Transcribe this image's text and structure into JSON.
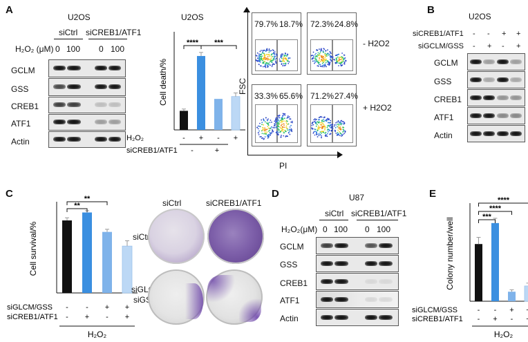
{
  "panels": {
    "A": "A",
    "B": "B",
    "C": "C",
    "D": "D",
    "E": "E"
  },
  "panelA": {
    "cell_line": "U2OS",
    "group_left": "siCtrl",
    "group_right": "siCREB1/ATF1",
    "treatment_label": "H₂O₂ (μM)",
    "doses": [
      "0",
      "100",
      "0",
      "100"
    ],
    "proteins": [
      "GCLM",
      "GSS",
      "CREB1",
      "ATF1",
      "Actin"
    ],
    "bar_title": "U2OS",
    "facs": {
      "y_label": "FSC",
      "x_label": "PI",
      "percent_labels": [
        "79.7%",
        "18.7%",
        "72.3%",
        "24.8%",
        "33.3%",
        "65.6%",
        "71.2%",
        "27.4%"
      ],
      "row_labels": [
        "- H2O2",
        "+ H2O2"
      ]
    }
  },
  "panelB": {
    "cell_line": "U2OS",
    "row1_label": "siCREB1/ATF1",
    "row1_signs": [
      "-",
      "-",
      "+",
      "+"
    ],
    "row2_label": "siGCLM/GSS",
    "row2_signs": [
      "-",
      "+",
      "-",
      "+"
    ],
    "proteins": [
      "GCLM",
      "GSS",
      "CREB1",
      "ATF1",
      "Actin"
    ]
  },
  "panelC": {
    "col_labels": [
      "siCtrl",
      "siCREB1/ATF1"
    ],
    "row_labels": [
      "siCtrl",
      "siGLCM",
      "siGSS"
    ],
    "treatment": "H₂O₂"
  },
  "panelD": {
    "cell_line": "U87",
    "group_left": "siCtrl",
    "group_right": "siCREB1/ATF1",
    "treatment_label": "H₂O₂(μM)",
    "doses": [
      "0",
      "100",
      "0",
      "100"
    ],
    "proteins": [
      "GCLM",
      "GSS",
      "CREB1",
      "ATF1",
      "Actin"
    ]
  },
  "chart_data": [
    {
      "id": "panelA-bar",
      "type": "bar",
      "title": "U2OS",
      "ylabel": "Cell death/%",
      "xlabel": "",
      "ylim": [
        0,
        80
      ],
      "categories": [
        "1",
        "2",
        "3",
        "4"
      ],
      "values": [
        16,
        62,
        26,
        28
      ],
      "errors": [
        1.5,
        3,
        0,
        3
      ],
      "colors": [
        "#111111",
        "#3b8fe0",
        "#7fb3ea",
        "#bcd8f5"
      ],
      "row1_label": "H₂O₂",
      "row1_signs": [
        "-",
        "+",
        "-",
        "+"
      ],
      "row2_label": "siCREB1/ATF1",
      "row2_signs": [
        "-",
        "+"
      ],
      "significance": [
        "****",
        "***"
      ]
    },
    {
      "id": "panelC-bar",
      "type": "bar",
      "title": "",
      "ylabel": "Cell survival/%",
      "xlabel": "H₂O₂",
      "ylim": [
        0,
        100
      ],
      "yticks": [
        0,
        20,
        40,
        60,
        80,
        100
      ],
      "categories": [
        "1",
        "2",
        "3",
        "4"
      ],
      "values": [
        82,
        91,
        69,
        53
      ],
      "errors": [
        3,
        2,
        3,
        6
      ],
      "colors": [
        "#111111",
        "#3b8fe0",
        "#7fb3ea",
        "#bcd8f5"
      ],
      "row1_label": "siGLCM/GSS",
      "row1_signs": [
        "-",
        "-",
        "+",
        "+"
      ],
      "row2_label": "siCREB1/ATF1",
      "row2_signs": [
        "-",
        "+",
        "-",
        "+"
      ],
      "significance": [
        "**",
        "**"
      ]
    },
    {
      "id": "panelE-bar",
      "type": "bar",
      "title": "",
      "ylabel": "Colony number/well",
      "xlabel": "H₂O₂",
      "ylim": [
        0,
        100
      ],
      "yticks": [
        0,
        20,
        40,
        60,
        80,
        100
      ],
      "categories": [
        "1",
        "2",
        "3",
        "4"
      ],
      "values": [
        60,
        82,
        10,
        16
      ],
      "errors": [
        7,
        5,
        2,
        3
      ],
      "colors": [
        "#111111",
        "#3b8fe0",
        "#7fb3ea",
        "#bcd8f5"
      ],
      "row1_label": "siGLCM/GSS",
      "row1_signs": [
        "-",
        "-",
        "+",
        "+"
      ],
      "row2_label": "siCREB1/ATF1",
      "row2_signs": [
        "-",
        "+",
        "-",
        "+"
      ],
      "significance": [
        "***",
        "****",
        "****"
      ]
    }
  ]
}
